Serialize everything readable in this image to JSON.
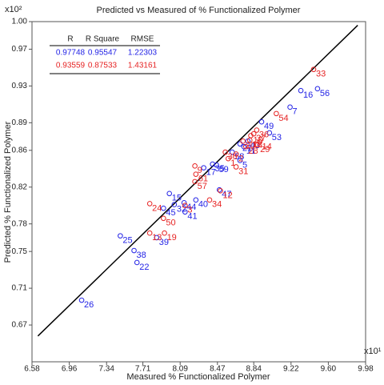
{
  "chart_data": {
    "type": "scatter",
    "title": "Predicted vs Measured of % Functionalized Polymer",
    "x_label": "Measured % Functionalized Polymer",
    "y_label": "Predicted % Functionalized Polymer",
    "x_multiplier": "x10¹",
    "y_multiplier": "x10²",
    "xlim": [
      6.58,
      9.98
    ],
    "ylim": [
      0.63,
      1.0
    ],
    "xticks": [
      6.58,
      6.96,
      7.34,
      7.71,
      8.09,
      8.47,
      8.84,
      9.22,
      {
        "value": 9.6,
        "label": "9.60"
      },
      9.98
    ],
    "yticks": [
      0.67,
      0.71,
      0.75,
      0.78,
      0.82,
      0.86,
      0.89,
      0.93,
      0.97,
      {
        "value": 1.0,
        "label": "1.00"
      }
    ],
    "fit_line": {
      "color": "#000000",
      "x": [
        6.64,
        9.9
      ],
      "y": [
        0.658,
        0.996
      ]
    },
    "stats": {
      "columns": [
        "R",
        "R Square",
        "RMSE"
      ],
      "rows": [
        [
          0.97748,
          0.95547,
          1.22303
        ],
        [
          0.93559,
          0.87533,
          1.43161
        ]
      ]
    },
    "series": [
      {
        "color": "#2323e6",
        "labels": [
          "26",
          "22",
          "38",
          "25",
          "39",
          "41",
          "45",
          "15",
          "32",
          "44",
          "40",
          "47",
          "17",
          "35",
          "59",
          "5",
          "58",
          "21",
          "11",
          "43",
          "53",
          "49",
          "7",
          "16",
          "56"
        ],
        "x": [
          7.086,
          7.65,
          7.62,
          7.48,
          7.85,
          8.14,
          7.92,
          7.98,
          8.03,
          8.13,
          8.25,
          8.49,
          8.33,
          8.42,
          8.46,
          8.7,
          8.62,
          8.7,
          8.74,
          8.78,
          9.0,
          8.92,
          9.21,
          9.32,
          9.49
        ],
        "values": [
          0.697,
          0.738,
          0.751,
          0.767,
          0.765,
          0.793,
          0.797,
          0.813,
          0.801,
          0.803,
          0.806,
          0.817,
          0.841,
          0.845,
          0.844,
          0.849,
          0.858,
          0.867,
          0.864,
          0.87,
          0.879,
          0.891,
          0.907,
          0.925,
          0.927
        ]
      },
      {
        "color": "#e62323",
        "labels": [
          "33",
          "54",
          "36",
          "10",
          "29",
          "14",
          "37",
          "18",
          "20",
          "28",
          "2",
          "30",
          "31",
          "1",
          "12",
          "34",
          "9",
          "61",
          "57",
          "3",
          "24",
          "50",
          "19",
          "13"
        ],
        "x": [
          9.45,
          9.07,
          8.87,
          8.81,
          8.88,
          8.9,
          8.84,
          8.8,
          8.73,
          8.76,
          8.66,
          8.55,
          8.66,
          8.58,
          8.5,
          8.39,
          8.24,
          8.25,
          8.24,
          8.14,
          7.78,
          7.92,
          7.93,
          7.78
        ],
        "values": [
          0.948,
          0.9,
          0.882,
          0.876,
          0.866,
          0.869,
          0.878,
          0.871,
          0.87,
          0.864,
          0.856,
          0.858,
          0.842,
          0.851,
          0.816,
          0.806,
          0.843,
          0.834,
          0.826,
          0.8,
          0.802,
          0.786,
          0.77,
          0.77
        ]
      }
    ]
  }
}
